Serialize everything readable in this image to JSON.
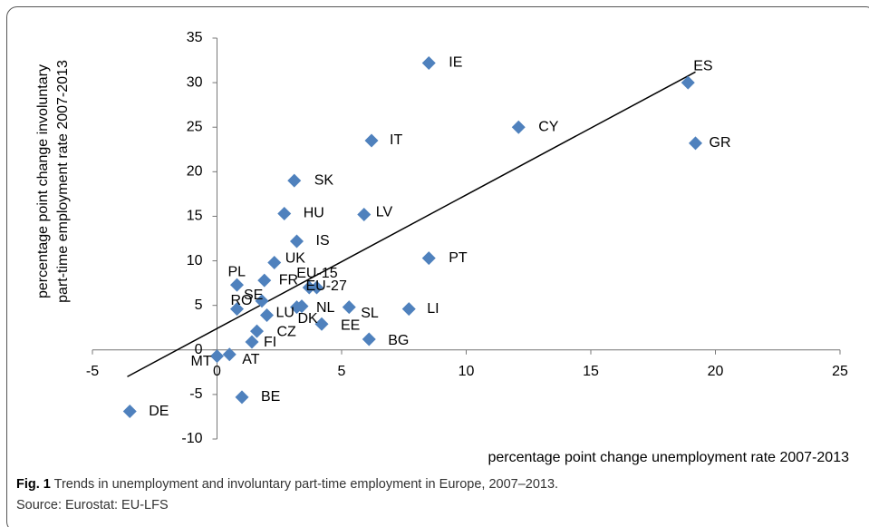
{
  "chart_data": {
    "type": "scatter",
    "x_label": "percentage point change unemployment rate 2007-2013",
    "y_label_lines": [
      "percentage point change involuntary",
      "part-time employment rate 2007-2013"
    ],
    "labels": [
      "IE",
      "ES",
      "GR",
      "CY",
      "IT",
      "SK",
      "HU",
      "LV",
      "IS",
      "PT",
      "UK",
      "PL",
      "FR",
      "EU-15",
      "EU-27",
      "RO",
      "SE",
      "NL",
      "DK",
      "SL",
      "LI",
      "LU",
      "EE",
      "CZ",
      "FI",
      "BG",
      "MT",
      "AT",
      "BE",
      "DE"
    ],
    "x": [
      8.5,
      18.9,
      19.2,
      12.1,
      6.2,
      3.1,
      2.7,
      5.9,
      3.2,
      8.5,
      2.3,
      0.8,
      1.9,
      3.7,
      4.0,
      0.8,
      1.8,
      3.4,
      3.2,
      5.3,
      7.7,
      2.0,
      4.2,
      1.6,
      1.4,
      6.1,
      0.0,
      0.5,
      1.0,
      -3.5
    ],
    "y": [
      32.2,
      30.0,
      23.2,
      25.0,
      23.5,
      19.0,
      15.3,
      15.2,
      12.2,
      10.3,
      9.8,
      7.3,
      7.8,
      7.0,
      7.0,
      4.6,
      5.5,
      4.9,
      4.8,
      4.8,
      4.6,
      3.9,
      2.9,
      2.1,
      0.9,
      1.2,
      -0.7,
      -0.5,
      -5.3,
      -6.9
    ],
    "color": "#4f81bd",
    "trendline": {
      "x": [
        -3.6,
        19.2
      ],
      "y": [
        -3.0,
        31.2
      ]
    },
    "xlim": [
      -5,
      25
    ],
    "xticks": [
      -5,
      0,
      5,
      10,
      15,
      20,
      25
    ],
    "ylim": [
      -10,
      35
    ],
    "yticks": [
      -10,
      -5,
      0,
      5,
      10,
      15,
      20,
      25,
      30,
      35
    ]
  },
  "caption": {
    "label": "Fig. 1",
    "text": "Trends in unemployment and involuntary part-time employment in Europe, 2007–2013.",
    "source": "Source: Eurostat: EU-LFS"
  }
}
